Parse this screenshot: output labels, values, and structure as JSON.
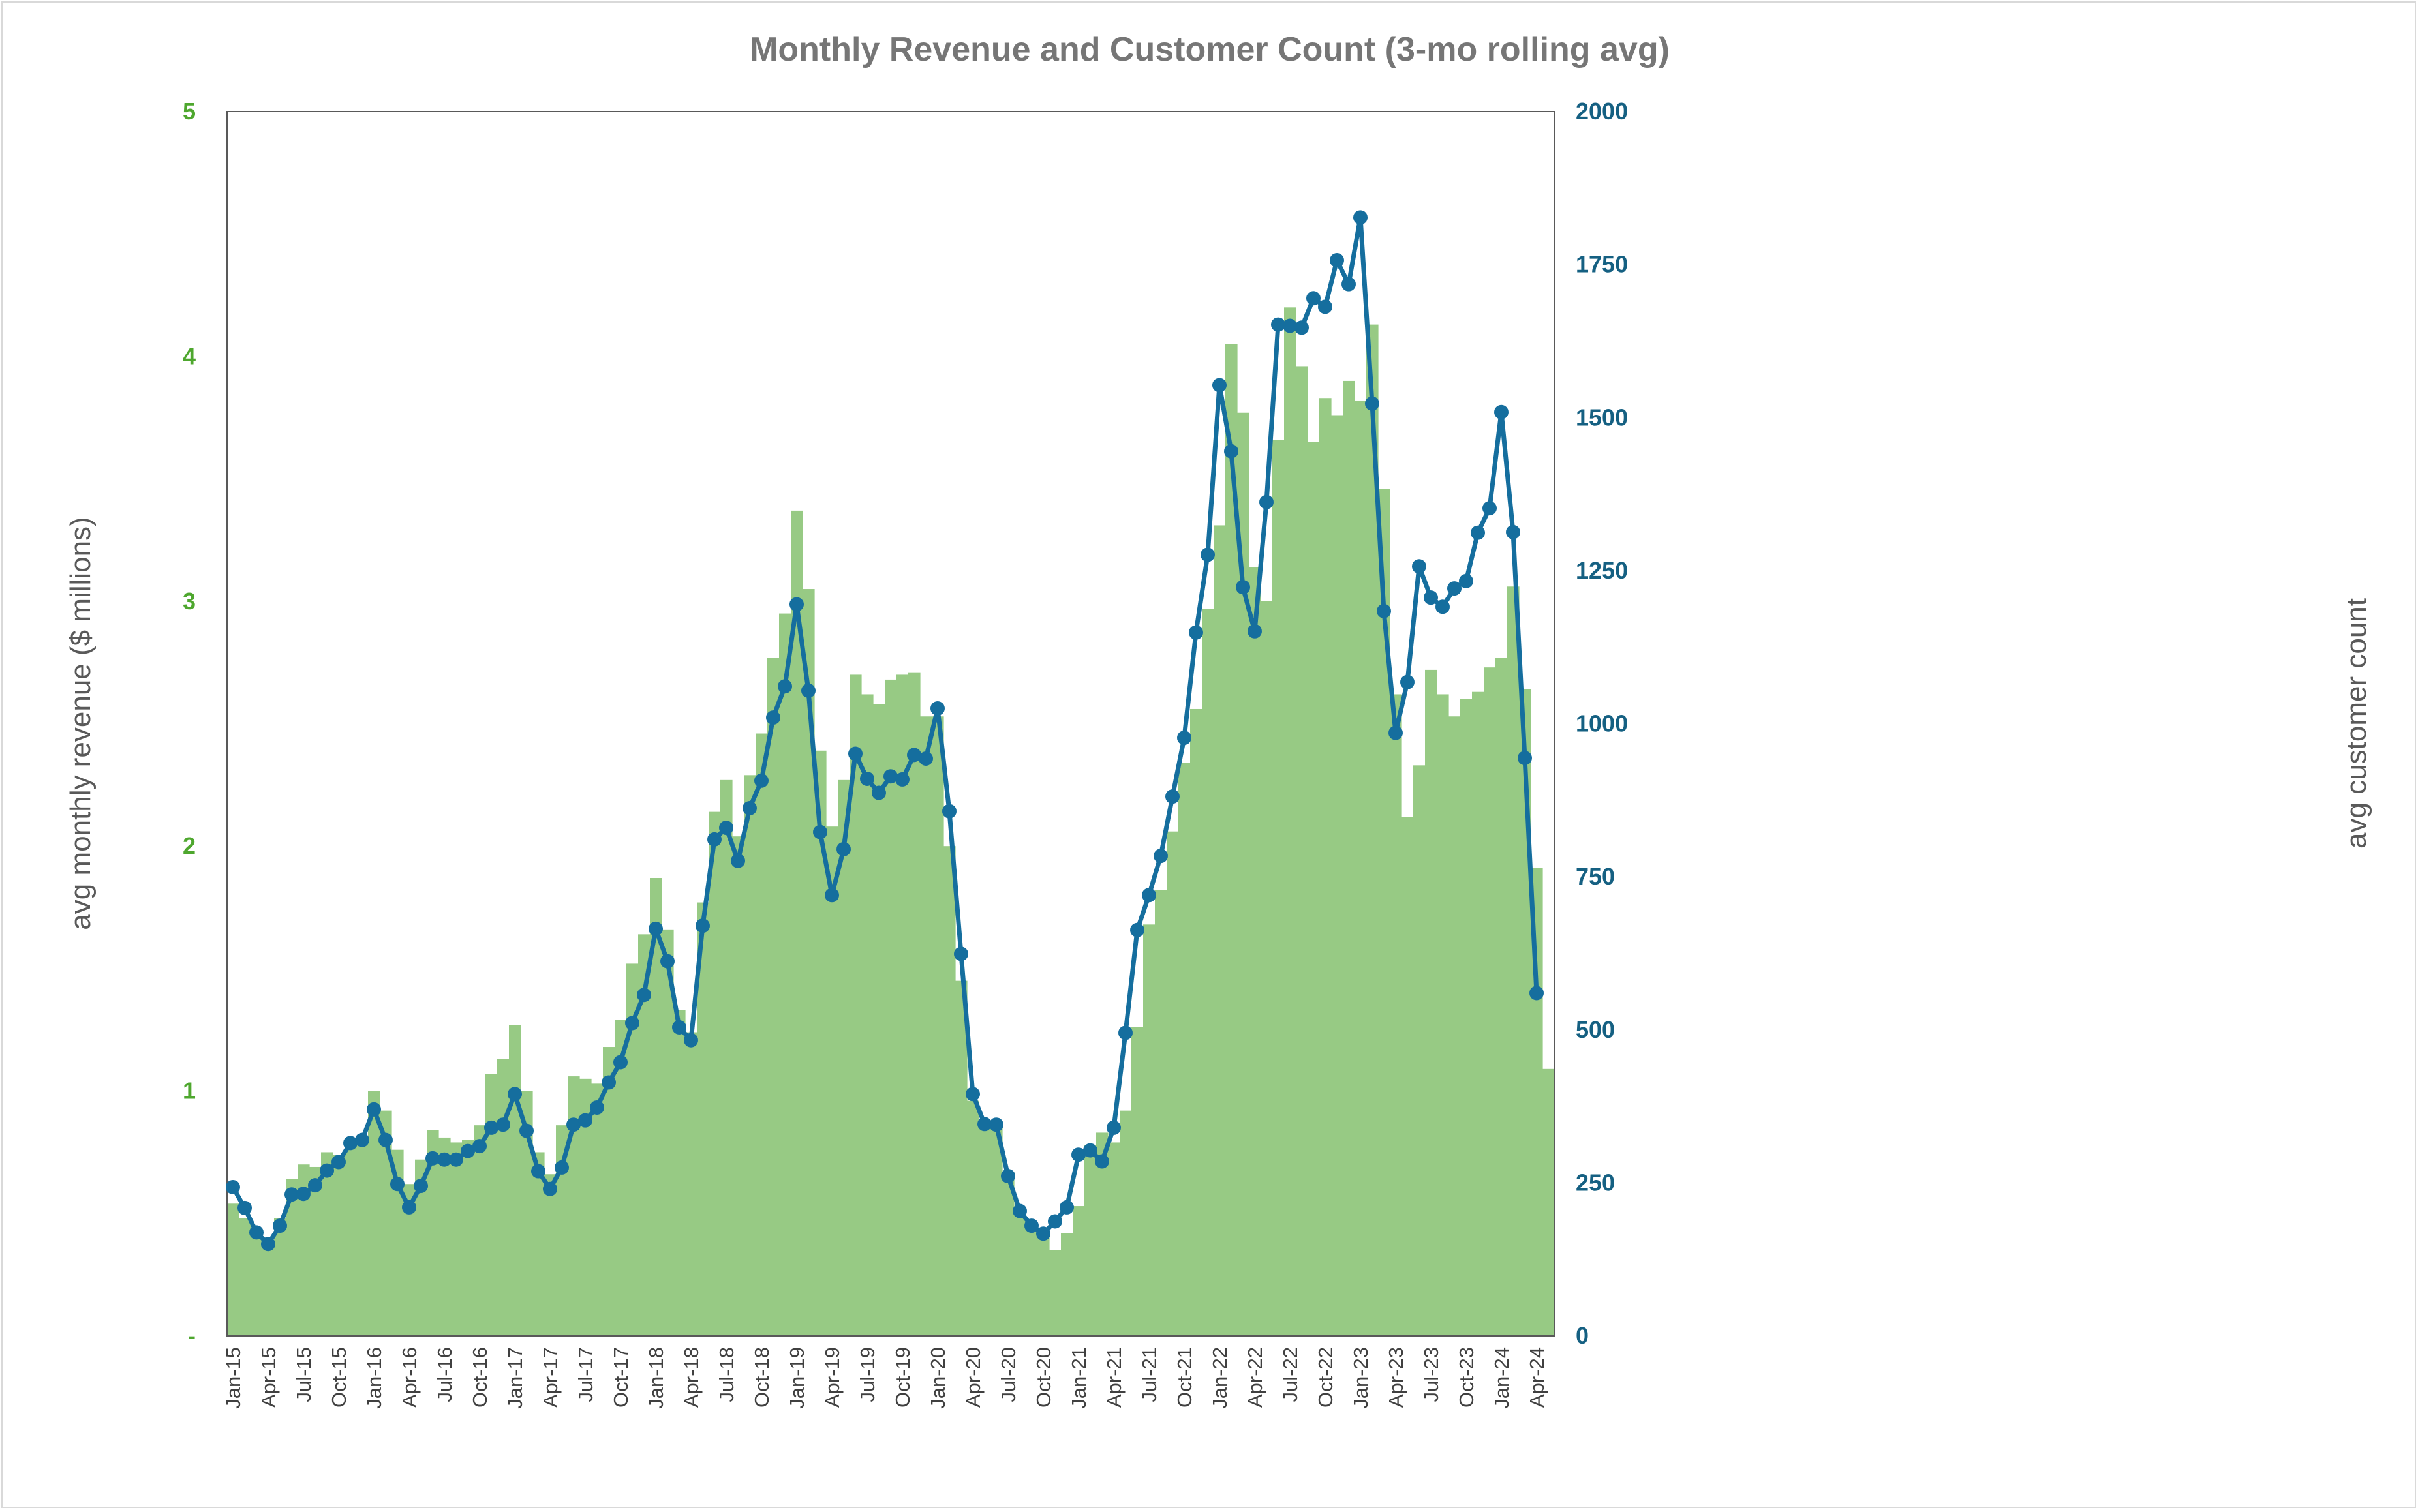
{
  "chart_data": {
    "type": "bar",
    "title": "Monthly Revenue and Customer Count (3-mo rolling avg)",
    "ylabel": "avg monthly revenue ($ millions)",
    "ylabel_right": "avg customer count",
    "ylim": [
      0,
      5
    ],
    "ylim_right": [
      0,
      2000
    ],
    "yticks": [
      "-",
      "1",
      "2",
      "3",
      "4",
      "5"
    ],
    "yticks_right": [
      "0",
      "250",
      "500",
      "750",
      "1000",
      "1250",
      "1500",
      "1750",
      "2000"
    ],
    "x_tick_labels": [
      "Jan-15",
      "Apr-15",
      "Jul-15",
      "Oct-15",
      "Jan-16",
      "Apr-16",
      "Jul-16",
      "Oct-16",
      "Jan-17",
      "Apr-17",
      "Jul-17",
      "Oct-17",
      "Jan-18",
      "Apr-18",
      "Jul-18",
      "Oct-18",
      "Jan-19",
      "Apr-19",
      "Jul-19",
      "Oct-19",
      "Jan-20",
      "Apr-20",
      "Jul-20",
      "Oct-20",
      "Jan-21",
      "Apr-21",
      "Jul-21",
      "Oct-21",
      "Jan-22",
      "Apr-22",
      "Jul-22",
      "Oct-22",
      "Jan-23",
      "Apr-23",
      "Jul-23",
      "Oct-23",
      "Jan-24",
      "Apr-24"
    ],
    "grid": false,
    "bar_color": "#97ca84",
    "line_color": "#156e9e",
    "series": [
      {
        "name": "avg monthly revenue ($ millions)",
        "kind": "bar",
        "axis": "left",
        "values": [
          0.54,
          0.48,
          0.42,
          0.38,
          0.48,
          0.64,
          0.7,
          0.69,
          0.75,
          0.74,
          0.8,
          0.8,
          1.0,
          0.92,
          0.76,
          0.62,
          0.72,
          0.84,
          0.81,
          0.79,
          0.8,
          0.86,
          1.07,
          1.13,
          1.27,
          1.0,
          0.75,
          0.66,
          0.86,
          1.06,
          1.05,
          1.03,
          1.18,
          1.29,
          1.52,
          1.64,
          1.87,
          1.66,
          1.33,
          1.24,
          1.77,
          2.14,
          2.27,
          2.04,
          2.29,
          2.46,
          2.77,
          2.95,
          3.37,
          3.05,
          2.39,
          2.08,
          2.27,
          2.7,
          2.62,
          2.58,
          2.68,
          2.7,
          2.71,
          2.53,
          2.53,
          2.0,
          1.45,
          0.96,
          0.85,
          0.86,
          0.67,
          0.52,
          0.43,
          0.41,
          0.35,
          0.42,
          0.53,
          0.78,
          0.83,
          0.79,
          0.92,
          1.26,
          1.68,
          1.82,
          2.06,
          2.34,
          2.56,
          2.97,
          3.31,
          4.05,
          3.77,
          3.14,
          3.0,
          3.66,
          4.2,
          3.96,
          3.65,
          3.83,
          3.76,
          3.9,
          3.82,
          4.13,
          3.46,
          2.62,
          2.12,
          2.33,
          2.72,
          2.62,
          2.53,
          2.6,
          2.63,
          2.73,
          2.77,
          3.06,
          2.64,
          1.91,
          1.09
        ]
      },
      {
        "name": "avg customer count",
        "kind": "line",
        "axis": "right",
        "values": [
          243,
          209,
          169,
          150,
          180,
          231,
          232,
          246,
          270,
          284,
          315,
          320,
          370,
          320,
          248,
          210,
          245,
          290,
          288,
          288,
          302,
          310,
          340,
          345,
          395,
          335,
          269,
          240,
          275,
          345,
          352,
          373,
          414,
          447,
          511,
          557,
          665,
          612,
          504,
          483,
          670,
          811,
          830,
          776,
          862,
          907,
          1010,
          1061,
          1195,
          1054,
          823,
          720,
          795,
          951,
          910,
          887,
          914,
          909,
          949,
          943,
          1025,
          857,
          624,
          395,
          346,
          345,
          261,
          204,
          180,
          167,
          187,
          210,
          296,
          303,
          285,
          340,
          495,
          663,
          720,
          784,
          881,
          977,
          1149,
          1276,
          1553,
          1445,
          1223,
          1151,
          1362,
          1652,
          1650,
          1647,
          1695,
          1681,
          1757,
          1718,
          1827,
          1523,
          1184,
          985,
          1068,
          1257,
          1206,
          1191,
          1221,
          1233,
          1312,
          1352,
          1509,
          1313,
          944,
          560
        ]
      }
    ]
  }
}
